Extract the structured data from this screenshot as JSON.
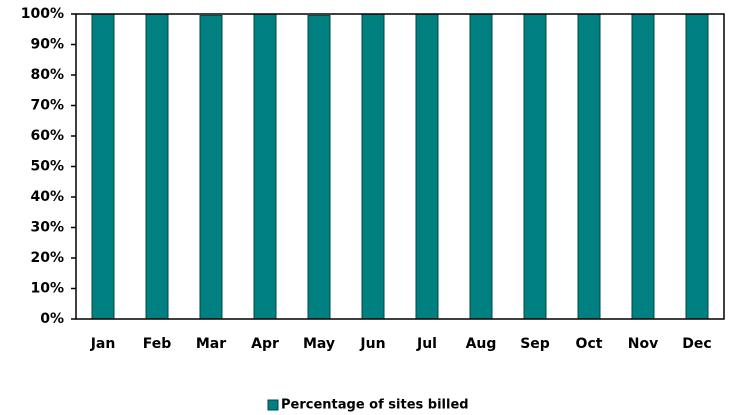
{
  "chart_data": {
    "type": "bar",
    "categories": [
      "Jan",
      "Feb",
      "Mar",
      "Apr",
      "May",
      "Jun",
      "Jul",
      "Aug",
      "Sep",
      "Oct",
      "Nov",
      "Dec"
    ],
    "series": [
      {
        "name": "Percentage of sites billed",
        "color": "#008080",
        "values": [
          100,
          100,
          99.5,
          100,
          99.5,
          100,
          100,
          100,
          100,
          100,
          100,
          100
        ]
      }
    ],
    "ylim": [
      0,
      100
    ],
    "yticks": [
      {
        "value": 0,
        "label": "0%"
      },
      {
        "value": 10,
        "label": "10%"
      },
      {
        "value": 20,
        "label": "20%"
      },
      {
        "value": 30,
        "label": "30%"
      },
      {
        "value": 40,
        "label": "40%"
      },
      {
        "value": 50,
        "label": "50%"
      },
      {
        "value": 60,
        "label": "60%"
      },
      {
        "value": 70,
        "label": "70%"
      },
      {
        "value": 80,
        "label": "80%"
      },
      {
        "value": 90,
        "label": "90%"
      },
      {
        "value": 100,
        "label": "100%"
      }
    ],
    "legend": "bottom"
  }
}
